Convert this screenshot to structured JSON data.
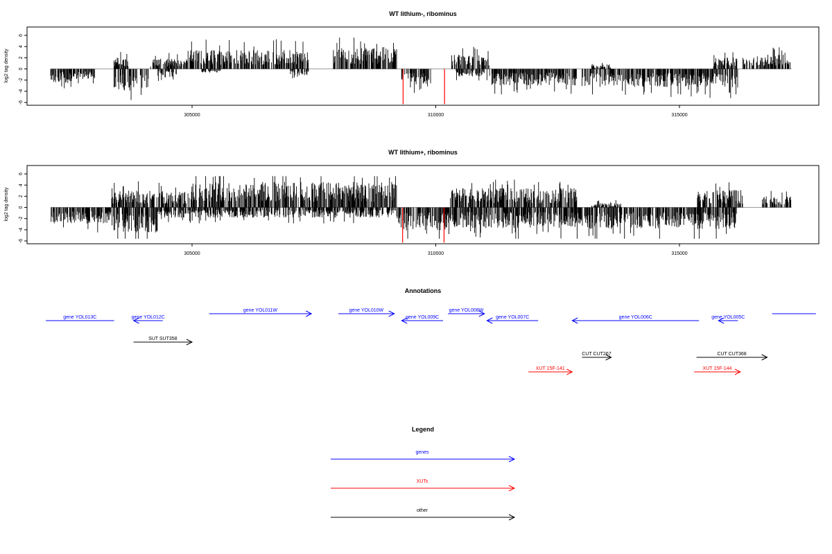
{
  "chart_data": [
    {
      "type": "bar",
      "title": "WT lithium-, ribominus",
      "ylabel": "log2 tag density",
      "xlabel": "",
      "xlim": [
        302000,
        317500
      ],
      "ylim": [
        -6.5,
        7.5
      ],
      "x_ticks": [
        305000,
        310000,
        315000
      ],
      "x_tick_labels": [
        "305000",
        "310000",
        "315000"
      ],
      "y_ticks": [
        -6,
        -4,
        -2,
        0,
        2,
        4,
        6
      ],
      "y_tick_labels": [
        "-6",
        "-4",
        "-2",
        "0",
        "2",
        "4",
        "6"
      ],
      "baseline_color": "#999999",
      "bar_color": "#000000",
      "highlight_color": "#ff0000",
      "segments": [
        {
          "start": 302100,
          "end": 302550,
          "sign": -1,
          "level": 2.2
        },
        {
          "start": 302550,
          "end": 303000,
          "sign": -1,
          "level": 1.6
        },
        {
          "start": 303380,
          "end": 304100,
          "sign": -1,
          "level": 3.4
        },
        {
          "start": 303400,
          "end": 303700,
          "sign": 1,
          "level": 1.8
        },
        {
          "start": 304150,
          "end": 304900,
          "sign": 1,
          "level": 1.6
        },
        {
          "start": 304300,
          "end": 304700,
          "sign": -1,
          "level": 1.4
        },
        {
          "start": 304900,
          "end": 307400,
          "sign": 1,
          "level": 3.0
        },
        {
          "start": 305200,
          "end": 305600,
          "sign": -1,
          "level": 0.6
        },
        {
          "start": 307000,
          "end": 307400,
          "sign": -1,
          "level": 1.0
        },
        {
          "start": 307900,
          "end": 309200,
          "sign": 1,
          "level": 3.4
        },
        {
          "start": 309300,
          "end": 309900,
          "sign": -1,
          "level": 2.4
        },
        {
          "start": 310300,
          "end": 311100,
          "sign": 1,
          "level": 2.2
        },
        {
          "start": 310400,
          "end": 311000,
          "sign": -1,
          "level": 1.2
        },
        {
          "start": 311050,
          "end": 312900,
          "sign": -1,
          "level": 2.6
        },
        {
          "start": 313000,
          "end": 315600,
          "sign": -1,
          "level": 2.8
        },
        {
          "start": 313200,
          "end": 313600,
          "sign": 1,
          "level": 0.8
        },
        {
          "start": 315600,
          "end": 316200,
          "sign": -1,
          "level": 3.0
        },
        {
          "start": 315700,
          "end": 316200,
          "sign": 1,
          "level": 1.8
        },
        {
          "start": 316300,
          "end": 317300,
          "sign": 1,
          "level": 2.2
        }
      ],
      "highlights": [
        {
          "x": 309330,
          "y": -6.3
        },
        {
          "x": 310180,
          "y": -6.3
        }
      ]
    },
    {
      "type": "bar",
      "title": "WT lithium+, ribominus",
      "ylabel": "log2 tag density",
      "xlabel": "",
      "xlim": [
        302000,
        317500
      ],
      "ylim": [
        -6.5,
        7.5
      ],
      "x_ticks": [
        305000,
        310000,
        315000
      ],
      "x_tick_labels": [
        "305000",
        "310000",
        "315000"
      ],
      "y_ticks": [
        -6,
        -4,
        -2,
        0,
        2,
        4,
        6
      ],
      "y_tick_labels": [
        "-6",
        "-4",
        "-2",
        "0",
        "2",
        "4",
        "6"
      ],
      "baseline_color": "#999999",
      "bar_color": "#000000",
      "highlight_color": "#ff0000",
      "segments": [
        {
          "start": 302100,
          "end": 303350,
          "sign": -1,
          "level": 2.6
        },
        {
          "start": 303350,
          "end": 304300,
          "sign": -1,
          "level": 4.0
        },
        {
          "start": 303350,
          "end": 305000,
          "sign": 1,
          "level": 2.6
        },
        {
          "start": 304300,
          "end": 309200,
          "sign": -1,
          "level": 1.6
        },
        {
          "start": 305000,
          "end": 309200,
          "sign": 1,
          "level": 4.0
        },
        {
          "start": 309200,
          "end": 310300,
          "sign": -1,
          "level": 3.6
        },
        {
          "start": 310300,
          "end": 312900,
          "sign": 1,
          "level": 3.0
        },
        {
          "start": 310300,
          "end": 312900,
          "sign": -1,
          "level": 3.2
        },
        {
          "start": 312900,
          "end": 315350,
          "sign": -1,
          "level": 3.4
        },
        {
          "start": 313200,
          "end": 313800,
          "sign": 1,
          "level": 0.8
        },
        {
          "start": 315350,
          "end": 316300,
          "sign": 1,
          "level": 2.8
        },
        {
          "start": 315350,
          "end": 316200,
          "sign": -1,
          "level": 3.4
        },
        {
          "start": 316700,
          "end": 317300,
          "sign": 1,
          "level": 1.8
        }
      ],
      "highlights": [
        {
          "x": 309320,
          "y": -6.3
        },
        {
          "x": 310170,
          "y": -6.3
        }
      ]
    }
  ],
  "annotations": {
    "title": "Annotations",
    "features": [
      {
        "label": "gene YOL013C",
        "start": 302000,
        "end": 303400,
        "dir": "none",
        "row": 1,
        "color": "#0000ff"
      },
      {
        "label": "gene YOL012C",
        "start": 303800,
        "end": 304400,
        "dir": "left",
        "row": 1,
        "color": "#0000ff"
      },
      {
        "label": "gene YOL011W",
        "start": 305350,
        "end": 307450,
        "dir": "right",
        "row": 0,
        "color": "#0000ff"
      },
      {
        "label": "gene YOL010W",
        "start": 308000,
        "end": 309150,
        "dir": "right",
        "row": 0,
        "color": "#0000ff"
      },
      {
        "label": "gene YOL009C",
        "start": 309300,
        "end": 310150,
        "dir": "left",
        "row": 1,
        "color": "#0000ff"
      },
      {
        "label": "gene YOL008W",
        "start": 310250,
        "end": 311000,
        "dir": "right",
        "row": 0,
        "color": "#0000ff"
      },
      {
        "label": "gene YOL007C",
        "start": 311050,
        "end": 312100,
        "dir": "left",
        "row": 1,
        "color": "#0000ff"
      },
      {
        "label": "gene YOL006C",
        "start": 312800,
        "end": 315400,
        "dir": "left",
        "row": 1,
        "color": "#0000ff"
      },
      {
        "label": "gene YOL005C",
        "start": 315800,
        "end": 316200,
        "dir": "left",
        "row": 1,
        "color": "#0000ff"
      },
      {
        "label": "",
        "start": 316900,
        "end": 317800,
        "dir": "none",
        "row": 0,
        "color": "#0000ff"
      },
      {
        "label": "SUT SUT358",
        "start": 303800,
        "end": 305000,
        "dir": "right",
        "row": 2,
        "color": "#000000"
      },
      {
        "label": "CUT CUT267",
        "start": 313000,
        "end": 313600,
        "dir": "right",
        "row": 3,
        "color": "#000000"
      },
      {
        "label": "CUT CUT368",
        "start": 315350,
        "end": 316800,
        "dir": "right",
        "row": 3,
        "color": "#000000"
      },
      {
        "label": "XUT 15F-141",
        "start": 311900,
        "end": 312800,
        "dir": "right",
        "row": 4,
        "color": "#ff0000"
      },
      {
        "label": "XUT 15F-144",
        "start": 315300,
        "end": 316250,
        "dir": "right",
        "row": 4,
        "color": "#ff0000"
      }
    ]
  },
  "legend": {
    "title": "Legend",
    "items": [
      {
        "label": "genes",
        "color": "#0000ff"
      },
      {
        "label": "XUTs",
        "color": "#ff0000"
      },
      {
        "label": "other",
        "color": "#000000"
      }
    ]
  }
}
